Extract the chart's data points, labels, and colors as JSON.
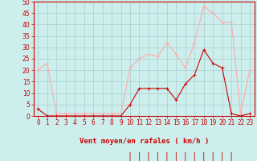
{
  "x": [
    0,
    1,
    2,
    3,
    4,
    5,
    6,
    7,
    8,
    9,
    10,
    11,
    12,
    13,
    14,
    15,
    16,
    17,
    18,
    19,
    20,
    21,
    22,
    23
  ],
  "vent_moyen": [
    3,
    0,
    0,
    0,
    0,
    0,
    0,
    0,
    0,
    0,
    5,
    12,
    12,
    12,
    12,
    7,
    14,
    18,
    29,
    23,
    21,
    1,
    0,
    1
  ],
  "rafales": [
    20,
    23,
    1,
    1,
    1,
    1,
    1,
    1,
    1,
    1,
    21,
    25,
    27,
    26,
    32,
    27,
    21,
    32,
    48,
    45,
    41,
    41,
    1,
    20
  ],
  "line_color_moyen": "#cc0000",
  "line_color_rafales": "#ffaaaa",
  "bg_color": "#cceeed",
  "grid_color": "#aacccc",
  "axis_color": "#cc0000",
  "ylim": [
    0,
    50
  ],
  "yticks": [
    0,
    5,
    10,
    15,
    20,
    25,
    30,
    35,
    40,
    45,
    50
  ],
  "xlabel": "Vent moyen/en rafales ( km/h )",
  "tick_fontsize": 5.5,
  "label_fontsize": 6.5,
  "arrow_hours": [
    10,
    11,
    12,
    13,
    14,
    15,
    16,
    17,
    18,
    19,
    20,
    21
  ]
}
